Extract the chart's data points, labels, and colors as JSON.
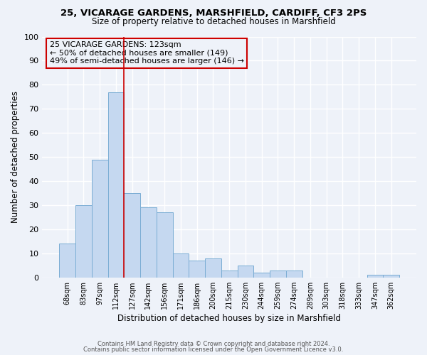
{
  "title1": "25, VICARAGE GARDENS, MARSHFIELD, CARDIFF, CF3 2PS",
  "title2": "Size of property relative to detached houses in Marshfield",
  "xlabel": "Distribution of detached houses by size in Marshfield",
  "ylabel": "Number of detached properties",
  "bar_labels": [
    "68sqm",
    "83sqm",
    "97sqm",
    "112sqm",
    "127sqm",
    "142sqm",
    "156sqm",
    "171sqm",
    "186sqm",
    "200sqm",
    "215sqm",
    "230sqm",
    "244sqm",
    "259sqm",
    "274sqm",
    "289sqm",
    "303sqm",
    "318sqm",
    "333sqm",
    "347sqm",
    "362sqm"
  ],
  "bar_values": [
    14,
    30,
    49,
    77,
    35,
    29,
    27,
    10,
    7,
    8,
    3,
    5,
    2,
    3,
    3,
    0,
    0,
    0,
    0,
    1,
    1
  ],
  "bar_color": "#c5d8f0",
  "bar_edge_color": "#7aadd4",
  "vline_color": "#cc0000",
  "vline_pos": 3.5,
  "annotation_title": "25 VICARAGE GARDENS: 123sqm",
  "annotation_line1": "← 50% of detached houses are smaller (149)",
  "annotation_line2": "49% of semi-detached houses are larger (146) →",
  "annotation_box_color": "#cc0000",
  "ylim": [
    0,
    100
  ],
  "yticks": [
    0,
    10,
    20,
    30,
    40,
    50,
    60,
    70,
    80,
    90,
    100
  ],
  "footer1": "Contains HM Land Registry data © Crown copyright and database right 2024.",
  "footer2": "Contains public sector information licensed under the Open Government Licence v3.0.",
  "bg_color": "#eef2f9"
}
